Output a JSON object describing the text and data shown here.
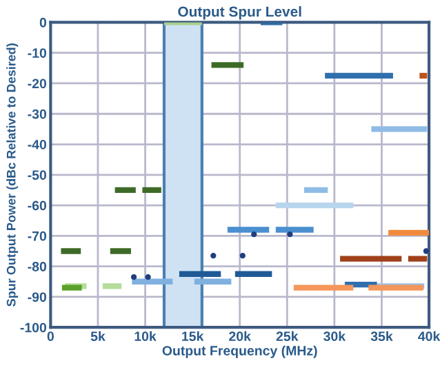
{
  "chart_data": {
    "type": "line",
    "title": "Output Spur Level",
    "xlabel": "Output Frequency (MHz)",
    "ylabel": "Spur Output Power (dBc Relative to Desired)",
    "xlim": [
      0,
      40000
    ],
    "ylim": [
      -100,
      0
    ],
    "xticks": [
      0,
      {
        "value": 5000,
        "label": "5k"
      },
      {
        "value": 10000,
        "label": "10k"
      },
      {
        "value": 15000,
        "label": "15k"
      },
      {
        "value": 20000,
        "label": "20k"
      },
      {
        "value": 25000,
        "label": "25k"
      },
      {
        "value": 30000,
        "label": "30k"
      },
      {
        "value": 35000,
        "label": "35k"
      },
      {
        "value": 40000,
        "label": "40k"
      }
    ],
    "yticks": [
      -100,
      -90,
      -80,
      -70,
      -60,
      -50,
      -40,
      -30,
      -20,
      -10,
      0
    ],
    "grid": true,
    "legend": false,
    "bands": [
      {
        "axis": "x",
        "from": 12000,
        "to": 16000,
        "color": "#cfe2f3"
      }
    ],
    "series": [
      {
        "color": "#a8d08d",
        "x": [
          12000,
          16000
        ],
        "values": [
          0,
          0
        ]
      },
      {
        "color": "#2e6da4",
        "x": [
          22200,
          24500
        ],
        "values": [
          0,
          0
        ]
      },
      {
        "color": "#3d6b27",
        "x": [
          17000,
          20400
        ],
        "values": [
          -14,
          -14
        ]
      },
      {
        "color": "#2f6fad",
        "x": [
          29000,
          36200
        ],
        "values": [
          -17.5,
          -17.5
        ]
      },
      {
        "color": "#c0501c",
        "x": [
          39000,
          39800
        ],
        "values": [
          -17.5,
          -17.5
        ]
      },
      {
        "color": "#8fbce6",
        "x": [
          33900,
          39800
        ],
        "values": [
          -35,
          -35
        ]
      },
      {
        "color": "#8fbce6",
        "x": [
          26800,
          29300
        ],
        "values": [
          -55,
          -55
        ]
      },
      {
        "color": "#3d6b27",
        "x": [
          6800,
          9000
        ],
        "values": [
          -55,
          -55
        ]
      },
      {
        "color": "#3d6b27",
        "x": [
          9700,
          11700
        ],
        "values": [
          -55,
          -55
        ]
      },
      {
        "color": "#b8d5ee",
        "x": [
          23800,
          32000
        ],
        "values": [
          -60,
          -60
        ]
      },
      {
        "color": "#4a8fd0",
        "x": [
          18700,
          23100
        ],
        "values": [
          -68,
          -68
        ]
      },
      {
        "color": "#4a8fd0",
        "x": [
          23800,
          27800
        ],
        "values": [
          -68,
          -68
        ]
      },
      {
        "color": "#f08a3c",
        "x": [
          35700,
          40000
        ],
        "values": [
          -69,
          -69
        ]
      },
      {
        "color": "#3d6b27",
        "x": [
          1100,
          3200
        ],
        "values": [
          -75,
          -75
        ]
      },
      {
        "color": "#3d6b27",
        "x": [
          6300,
          8500
        ],
        "values": [
          -75,
          -75
        ]
      },
      {
        "color": "#a0401a",
        "x": [
          30600,
          37100
        ],
        "values": [
          -77.5,
          -77.5
        ]
      },
      {
        "color": "#a0401a",
        "x": [
          37800,
          39800
        ],
        "values": [
          -77.5,
          -77.5
        ]
      },
      {
        "color": "#1f5a96",
        "x": [
          13600,
          18000
        ],
        "values": [
          -82.5,
          -82.5
        ]
      },
      {
        "color": "#1f5a96",
        "x": [
          19500,
          23400
        ],
        "values": [
          -82.5,
          -82.5
        ]
      },
      {
        "color": "#7fb0e0",
        "x": [
          8600,
          12900
        ],
        "values": [
          -85,
          -85
        ]
      },
      {
        "color": "#7fb0e0",
        "x": [
          15200,
          19100
        ],
        "values": [
          -85,
          -85
        ]
      },
      {
        "color": "#b5dc9a",
        "x": [
          1500,
          3800
        ],
        "values": [
          -86.5,
          -86.5
        ]
      },
      {
        "color": "#5aa02c",
        "x": [
          1200,
          3300
        ],
        "values": [
          -87,
          -87
        ]
      },
      {
        "color": "#b5dc9a",
        "x": [
          5500,
          7500
        ],
        "values": [
          -86.5,
          -86.5
        ]
      },
      {
        "color": "#9cc3e6",
        "x": [
          34500,
          39500
        ],
        "values": [
          -86.5,
          -86.5
        ]
      },
      {
        "color": "#2f6fad",
        "x": [
          31100,
          34500
        ],
        "values": [
          -86,
          -86
        ]
      },
      {
        "color": "#f5965a",
        "x": [
          25700,
          32000
        ],
        "values": [
          -87,
          -87
        ]
      },
      {
        "color": "#f5965a",
        "x": [
          33600,
          39400
        ],
        "values": [
          -87,
          -87
        ]
      },
      {
        "type": "scatter",
        "marker": "circle",
        "color": "#1f3f7f",
        "x": [
          8800,
          10300,
          17200,
          20300,
          21500,
          25300,
          39700
        ],
        "values": [
          -83.5,
          -83.5,
          -76.5,
          -76.5,
          -69.5,
          -69.5,
          -75
        ]
      }
    ]
  }
}
